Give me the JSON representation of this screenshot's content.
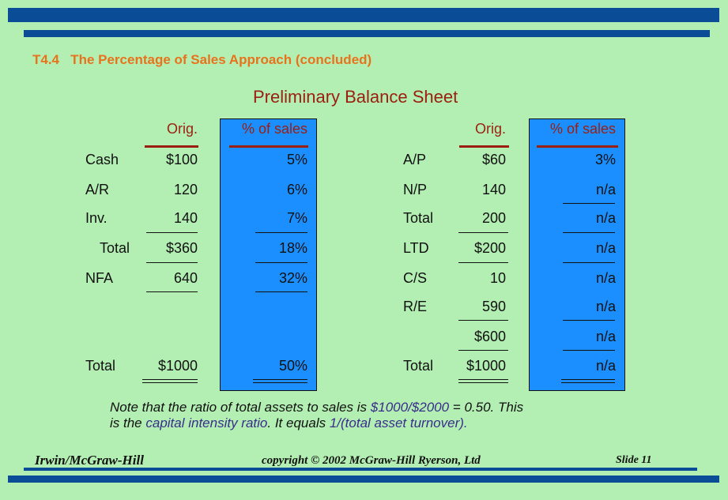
{
  "header": {
    "title": "T4.4   The Percentage of Sales Approach (concluded)"
  },
  "sheet_title": "Preliminary Balance Sheet",
  "assets": {
    "orig_header": "Orig.",
    "pct_header": "% of sales",
    "rows": [
      {
        "label": "Cash",
        "orig": "$100",
        "pct": "5%"
      },
      {
        "label": "A/R",
        "orig": "120",
        "pct": "6%"
      },
      {
        "label": "Inv.",
        "orig": "140",
        "pct": "7%"
      },
      {
        "label": "Total",
        "orig": "$360",
        "pct": "18%"
      },
      {
        "label": "NFA",
        "orig": "640",
        "pct": "32%"
      },
      {
        "label": "Total",
        "orig": "$1000",
        "pct": "50%"
      }
    ]
  },
  "liabilities": {
    "orig_header": "Orig.",
    "pct_header": "% of sales",
    "rows": [
      {
        "label": "A/P",
        "orig": "$60",
        "pct": "3%"
      },
      {
        "label": "N/P",
        "orig": "140",
        "pct": "n/a"
      },
      {
        "label": "Total",
        "orig": "200",
        "pct": "n/a"
      },
      {
        "label": "LTD",
        "orig": "$200",
        "pct": "n/a"
      },
      {
        "label": "C/S",
        "orig": "10",
        "pct": "n/a"
      },
      {
        "label": "R/E",
        "orig": "590",
        "pct": "n/a"
      },
      {
        "label": "",
        "orig": "$600",
        "pct": "n/a"
      },
      {
        "label": "Total",
        "orig": "$1000",
        "pct": "n/a"
      }
    ]
  },
  "note": {
    "p1": "Note that the ratio of total assets to sales is ",
    "h1": "$1000/$2000",
    "p2": " = 0.50. This",
    "p3": "is the ",
    "h2": "capital intensity ratio",
    "p4": ". It equals ",
    "h3": "1/(total asset turnover)",
    "p5": "."
  },
  "footer": {
    "left": "Irwin/McGraw-Hill",
    "center": "copyright © 2002 McGraw-Hill Ryerson, Ltd",
    "right": "Slide 11"
  },
  "colors": {
    "background": "#b3efb3",
    "bars": "#0a4d96",
    "highlight_box": "#1b8fff",
    "accent": "#9b1f10",
    "title": "#e8731c"
  }
}
